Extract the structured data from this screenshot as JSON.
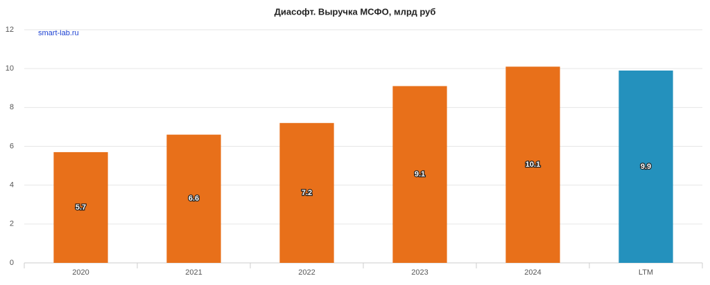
{
  "chart_data": {
    "type": "bar",
    "title": "Диасофт. Выручка МСФО, млрд руб",
    "credit": "smart-lab.ru",
    "categories": [
      "2020",
      "2021",
      "2022",
      "2023",
      "2024",
      "LTM"
    ],
    "values": [
      5.7,
      6.6,
      7.2,
      9.1,
      10.1,
      9.9
    ],
    "colors": [
      "#e8701a",
      "#e8701a",
      "#e8701a",
      "#e8701a",
      "#e8701a",
      "#2491bd"
    ],
    "ylim": [
      0,
      12
    ],
    "yticks": [
      0,
      2,
      4,
      6,
      8,
      10,
      12
    ],
    "grid": true,
    "data_labels": true
  }
}
